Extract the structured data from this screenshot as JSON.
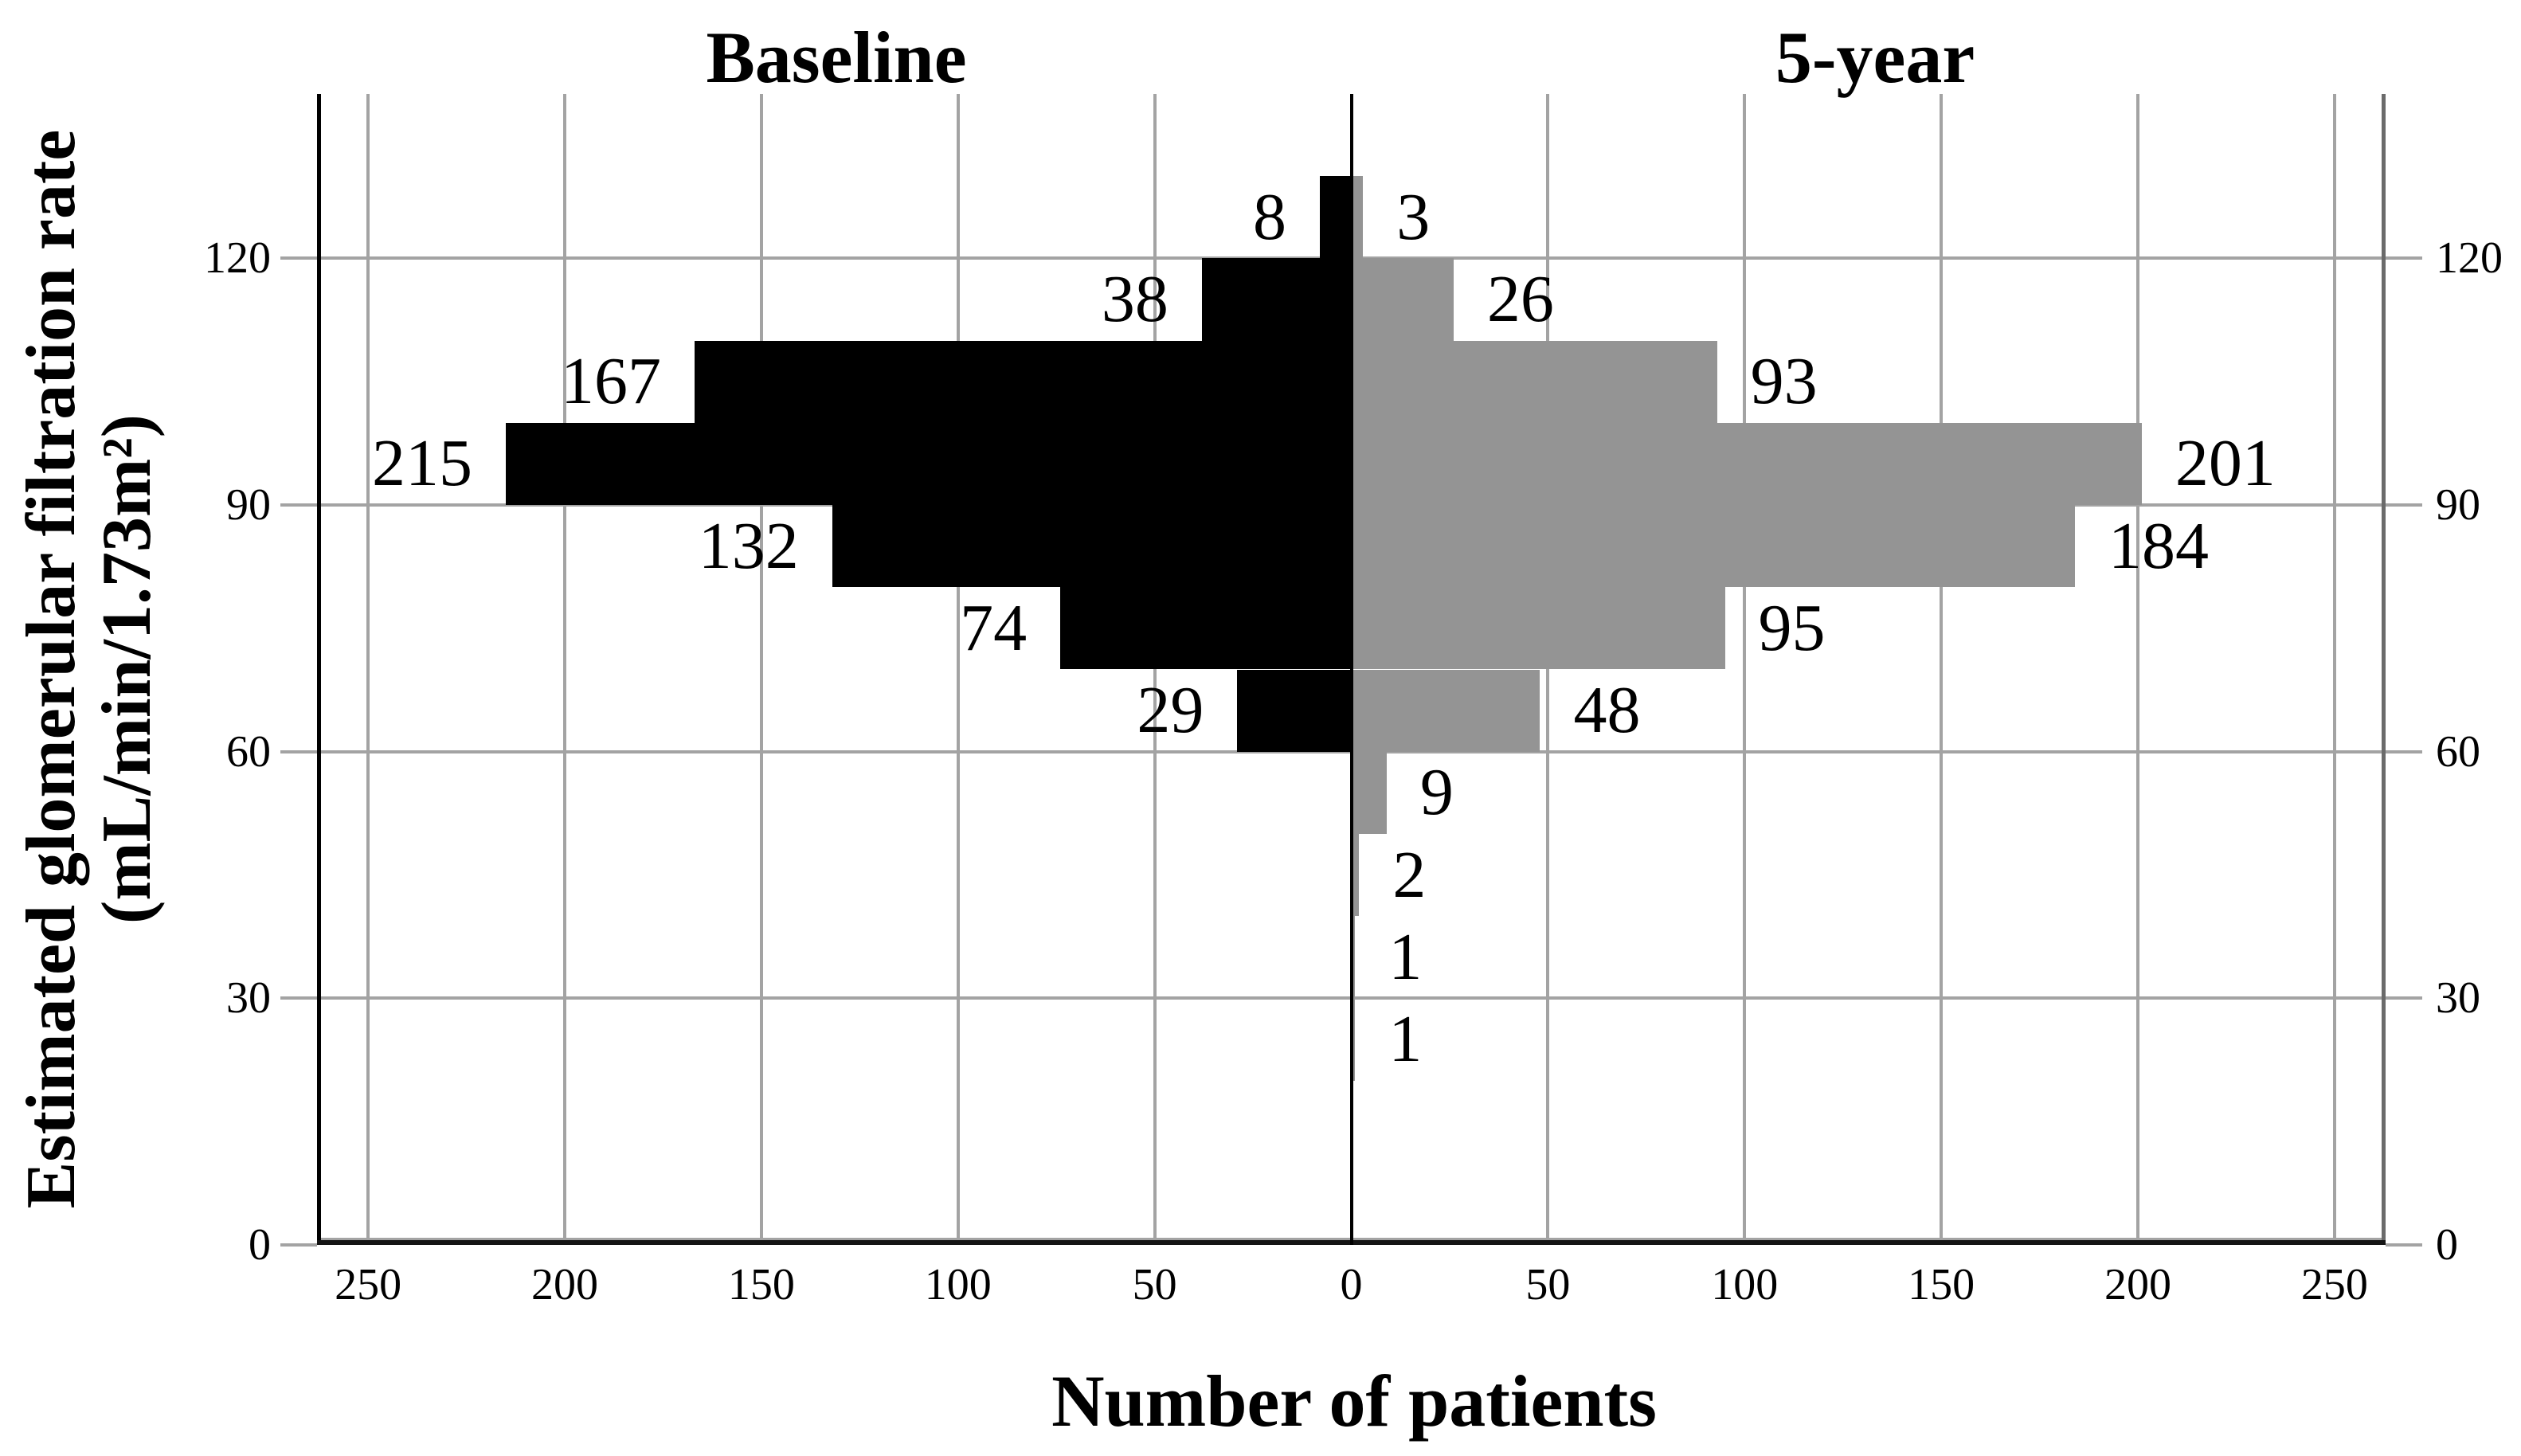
{
  "chart_data": {
    "type": "bar",
    "variant": "population-pyramid-histogram",
    "left_title": "Baseline",
    "right_title": "5-year",
    "xlabel": "Number of patients",
    "ylabel_line1": "Estimated glomerular filtration rate",
    "ylabel_line2": "(mL/min/1.73m²)",
    "series": [
      {
        "name": "Baseline",
        "key": "baseline",
        "side": "left",
        "color": "#000000"
      },
      {
        "name": "5-year",
        "key": "five_year",
        "side": "right",
        "color": "#949494"
      }
    ],
    "bin_width": 10,
    "bins": [
      {
        "egfr_low": 120,
        "egfr_high": 130,
        "baseline": 8,
        "five_year": 3
      },
      {
        "egfr_low": 110,
        "egfr_high": 120,
        "baseline": 38,
        "five_year": 26
      },
      {
        "egfr_low": 100,
        "egfr_high": 110,
        "baseline": 167,
        "five_year": 93
      },
      {
        "egfr_low": 90,
        "egfr_high": 100,
        "baseline": 215,
        "five_year": 201
      },
      {
        "egfr_low": 80,
        "egfr_high": 90,
        "baseline": 132,
        "five_year": 184
      },
      {
        "egfr_low": 70,
        "egfr_high": 80,
        "baseline": 74,
        "five_year": 95
      },
      {
        "egfr_low": 60,
        "egfr_high": 70,
        "baseline": 29,
        "five_year": 48
      },
      {
        "egfr_low": 50,
        "egfr_high": 60,
        "baseline": 0,
        "five_year": 9
      },
      {
        "egfr_low": 40,
        "egfr_high": 50,
        "baseline": 0,
        "five_year": 2
      },
      {
        "egfr_low": 30,
        "egfr_high": 40,
        "baseline": 0,
        "five_year": 1
      },
      {
        "egfr_low": 20,
        "egfr_high": 30,
        "baseline": 0,
        "five_year": 1
      }
    ],
    "x_ticks": [
      "250",
      "200",
      "150",
      "100",
      "50",
      "0",
      "50",
      "100",
      "150",
      "200",
      "250"
    ],
    "x_tick_step": 50,
    "x_max_per_side": 263,
    "y_ticks": [
      0,
      30,
      60,
      90,
      120
    ],
    "y_range": [
      0,
      140
    ],
    "grid": true,
    "legend_position": "none",
    "colors": {
      "baseline_bar": "#000000",
      "five_year_bar": "#949494",
      "gridline": "#a3a3a3",
      "left_frame": "#000000",
      "right_frame": "#6b6b6b",
      "bottom_axis": "#141414",
      "center_axis": "#000000",
      "text": "#000000"
    }
  }
}
